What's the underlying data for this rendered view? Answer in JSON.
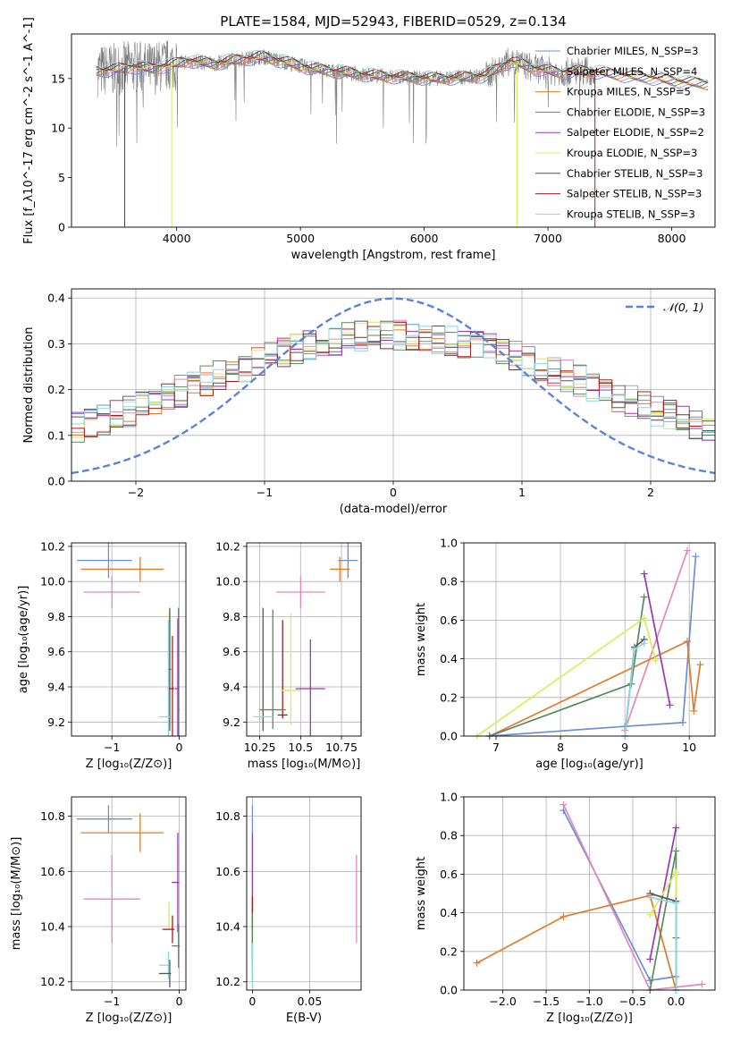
{
  "figure_title": "PLATE=1584, MJD=52943, FIBERID=0529, z=0.134",
  "colors": {
    "Chabrier MILES": "#6b8fd6",
    "Salpeter MILES": "#e487b8",
    "Kroupa MILES": "#e07b2c",
    "Chabrier ELODIE": "#5a8a5e",
    "Salpeter ELODIE": "#9a36b8",
    "Kroupa ELODIE": "#d8ee5a",
    "Chabrier STELIB": "#555555",
    "Salpeter STELIB": "#aa1a1a",
    "Kroupa STELIB": "#8ad8e0",
    "data": "#808080"
  },
  "chart_data": [
    {
      "id": "spectrum",
      "type": "line",
      "xlabel": "wavelength [Angstrom, rest frame]",
      "ylabel": "Flux [f_λ10^-17 erg cm^-2 s^-1 A^-1]",
      "xlim": [
        3150,
        8350
      ],
      "ylim": [
        0,
        19.5
      ],
      "xticks": [
        4000,
        5000,
        6000,
        7000,
        8000
      ],
      "yticks": [
        0,
        5,
        10,
        15
      ],
      "grid": false,
      "legend_position": "right",
      "legend": [
        "Chabrier MILES, N_SSP=3",
        "Salpeter MILES, N_SSP=4",
        "Kroupa MILES, N_SSP=5",
        "Chabrier ELODIE, N_SSP=3",
        "Salpeter ELODIE, N_SSP=2",
        "Kroupa ELODIE, N_SSP=3",
        "Chabrier STELIB, N_SSP=3",
        "Salpeter STELIB, N_SSP=3",
        "Kroupa STELIB, N_SSP=3"
      ],
      "data_range": [
        3360,
        7380
      ],
      "model_continuum": [
        [
          3350,
          15.8
        ],
        [
          3500,
          15.9
        ],
        [
          3650,
          16.2
        ],
        [
          3800,
          16.0
        ],
        [
          3950,
          16.4
        ],
        [
          4100,
          16.8
        ],
        [
          4300,
          16.5
        ],
        [
          4500,
          16.9
        ],
        [
          4700,
          17.2
        ],
        [
          4900,
          16.6
        ],
        [
          5100,
          16.0
        ],
        [
          5300,
          15.7
        ],
        [
          5500,
          15.4
        ],
        [
          5700,
          15.2
        ],
        [
          5900,
          15.1
        ],
        [
          6100,
          15.0
        ],
        [
          6300,
          15.1
        ],
        [
          6500,
          15.3
        ],
        [
          6700,
          16.8
        ],
        [
          6900,
          16.0
        ],
        [
          7100,
          15.6
        ],
        [
          7300,
          15.8
        ],
        [
          7500,
          15.5
        ],
        [
          7700,
          15.2
        ],
        [
          7900,
          15.0
        ],
        [
          8100,
          14.6
        ],
        [
          8300,
          14.5
        ]
      ],
      "model_edges": [
        {
          "series": "Salpeter STELIB",
          "x": 3580
        },
        {
          "series": "Kroupa ELODIE",
          "x": 3960
        },
        {
          "series": "Kroupa ELODIE",
          "x": 6750
        },
        {
          "series": "Salpeter STELIB",
          "x": 7380
        }
      ]
    },
    {
      "id": "residuals",
      "type": "histogram",
      "xlabel": "(data-model)/error",
      "ylabel": "Normed distribution",
      "xlim": [
        -2.5,
        2.5
      ],
      "ylim": [
        0,
        0.42
      ],
      "xticks": [
        -2,
        -1,
        0,
        1,
        2
      ],
      "yticks": [
        0.0,
        0.1,
        0.2,
        0.3,
        0.4
      ],
      "grid": true,
      "legend_position": "top-right",
      "legend": [
        "𝒩(0, 1)"
      ],
      "bins": 50,
      "gaussian": {
        "mu": 0,
        "sigma": 1
      }
    },
    {
      "id": "age-vs-Z",
      "type": "errorbar",
      "xlabel": "Z [log10(Z/Z⊙)]",
      "ylabel": "age [log10(age/yr)]",
      "xlim": [
        -1.6,
        0.1
      ],
      "ylim": [
        9.12,
        10.22
      ],
      "xticks": [
        -1,
        0
      ],
      "yticks": [
        9.2,
        9.4,
        9.6,
        9.8,
        10.0,
        10.2
      ],
      "grid": true,
      "points": [
        {
          "series": "Chabrier MILES",
          "x": -1.05,
          "xerr": [
            0.47,
            0.35
          ],
          "y": 10.12,
          "yerr": 0.1
        },
        {
          "series": "Kroupa MILES",
          "x": -0.58,
          "xerr": [
            0.88,
            0.35
          ],
          "y": 10.07,
          "yerr": 0.07
        },
        {
          "series": "Salpeter MILES",
          "x": -1.0,
          "xerr": [
            0.42,
            0.42
          ],
          "y": 9.94,
          "yerr": 0.09
        },
        {
          "series": "Chabrier ELODIE",
          "x": -0.01,
          "xerr": [
            0.0,
            0.02
          ],
          "y": 9.27,
          "yerr": 0.58
        },
        {
          "series": "Salpeter ELODIE",
          "x": -0.02,
          "xerr": [
            0.04,
            0.02
          ],
          "y": 9.39,
          "yerr": 0.4
        },
        {
          "series": "Kroupa ELODIE",
          "x": -0.15,
          "xerr": [
            0.02,
            0.02
          ],
          "y": 9.5,
          "yerr": 0.32
        },
        {
          "series": "Chabrier STELIB",
          "x": -0.14,
          "xerr": [
            0.02,
            0.02
          ],
          "y": 9.5,
          "yerr": 0.35
        },
        {
          "series": "Salpeter STELIB",
          "x": -0.1,
          "xerr": [
            0.07,
            0.03
          ],
          "y": 9.39,
          "yerr": 0.3
        },
        {
          "series": "Kroupa STELIB",
          "x": -0.16,
          "xerr": [
            0.14,
            0.02
          ],
          "y": 9.23,
          "yerr": 0.55
        }
      ]
    },
    {
      "id": "age-vs-mass",
      "type": "errorbar",
      "xlabel": "mass [log10(M/M⊙)]",
      "ylabel": "",
      "xlim": [
        10.17,
        10.87
      ],
      "ylim": [
        9.12,
        10.22
      ],
      "xticks": [
        10.25,
        10.5,
        10.75
      ],
      "yticks": [
        9.2,
        9.4,
        9.6,
        9.8,
        10.0,
        10.2
      ],
      "grid": true,
      "points": [
        {
          "series": "Chabrier MILES",
          "x": 10.79,
          "xerr": [
            0.06,
            0.06
          ],
          "y": 10.12,
          "yerr": 0.1
        },
        {
          "series": "Kroupa MILES",
          "x": 10.74,
          "xerr": [
            0.06,
            0.06
          ],
          "y": 10.07,
          "yerr": 0.07
        },
        {
          "series": "Salpeter MILES",
          "x": 10.5,
          "xerr": [
            0.15,
            0.15
          ],
          "y": 9.94,
          "yerr": 0.09
        },
        {
          "series": "Chabrier STELIB",
          "x": 10.27,
          "xerr": [
            0.0,
            0.0
          ],
          "y": 9.5,
          "yerr": 0.35
        },
        {
          "series": "Chabrier ELODIE",
          "x": 10.33,
          "xerr": [
            0.0,
            0.0
          ],
          "y": 9.5,
          "yerr": 0.34
        },
        {
          "series": "Salpeter STELIB",
          "x": 10.39,
          "xerr": [
            0.0,
            0.0
          ],
          "y": 9.5,
          "yerr": 0.28
        },
        {
          "series": "Kroupa ELODIE",
          "x": 10.44,
          "xerr": [
            0.0,
            0.0
          ],
          "y": 9.5,
          "yerr": 0.32
        },
        {
          "series": "Salpeter ELODIE",
          "x": 10.56,
          "xerr": [
            0.09,
            0.09
          ],
          "y": 9.39,
          "yerr": 0.28
        },
        {
          "series": "Chabrier ELODIE",
          "x": 10.33,
          "xerr": [
            0.08,
            0.08
          ],
          "y": 9.27,
          "yerr": 0.0
        },
        {
          "series": "Salpeter STELIB",
          "x": 10.39,
          "xerr": [
            0.03,
            0.03
          ],
          "y": 9.24,
          "yerr": 0.0
        },
        {
          "series": "Kroupa ELODIE",
          "x": 10.44,
          "xerr": [
            0.06,
            0.06
          ],
          "y": 9.38,
          "yerr": 0.0
        },
        {
          "series": "Kroupa STELIB",
          "x": 10.27,
          "xerr": [
            0.06,
            0.06
          ],
          "y": 9.23,
          "yerr": 0.0
        }
      ]
    },
    {
      "id": "weight-vs-age",
      "type": "line",
      "xlabel": "age [log10(age/yr)]",
      "ylabel": "mass weight",
      "xlim": [
        6.5,
        10.4
      ],
      "ylim": [
        0,
        1
      ],
      "xticks": [
        7,
        8,
        9,
        10
      ],
      "yticks": [
        0.0,
        0.2,
        0.4,
        0.6,
        0.8,
        1.0
      ],
      "grid": true,
      "series": [
        {
          "name": "Chabrier MILES",
          "points": [
            [
              6.9,
              0.0
            ],
            [
              9.0,
              0.05
            ],
            [
              9.9,
              0.07
            ],
            [
              10.1,
              0.93
            ]
          ]
        },
        {
          "name": "Salpeter MILES",
          "points": [
            [
              9.0,
              0.03
            ],
            [
              9.97,
              0.96
            ]
          ]
        },
        {
          "name": "Kroupa MILES",
          "points": [
            [
              6.9,
              0.0
            ],
            [
              9.97,
              0.49
            ],
            [
              10.07,
              0.13
            ],
            [
              10.17,
              0.37
            ]
          ]
        },
        {
          "name": "Chabrier ELODIE",
          "points": [
            [
              6.9,
              0.0
            ],
            [
              9.1,
              0.27
            ],
            [
              9.3,
              0.72
            ]
          ]
        },
        {
          "name": "Salpeter ELODIE",
          "points": [
            [
              9.3,
              0.84
            ],
            [
              9.7,
              0.16
            ]
          ]
        },
        {
          "name": "Kroupa ELODIE",
          "points": [
            [
              6.7,
              0.0
            ],
            [
              9.3,
              0.61
            ],
            [
              9.48,
              0.39
            ]
          ]
        },
        {
          "name": "Chabrier STELIB",
          "points": [
            [
              9.0,
              0.0
            ],
            [
              9.15,
              0.46
            ],
            [
              9.3,
              0.5
            ]
          ]
        },
        {
          "name": "Kroupa STELIB",
          "points": [
            [
              9.0,
              0.0
            ],
            [
              9.15,
              0.45
            ],
            [
              9.3,
              0.48
            ]
          ]
        }
      ]
    },
    {
      "id": "mass-vs-Z",
      "type": "errorbar",
      "xlabel": "Z [log10(Z/Z⊙)]",
      "ylabel": "mass [log10(M/M⊙)]",
      "xlim": [
        -1.6,
        0.1
      ],
      "ylim": [
        10.17,
        10.87
      ],
      "xticks": [
        -1,
        0
      ],
      "yticks": [
        10.2,
        10.4,
        10.6,
        10.8
      ],
      "grid": true,
      "points": [
        {
          "series": "Chabrier MILES",
          "x": -1.05,
          "xerr": [
            0.47,
            0.35
          ],
          "y": 10.79,
          "yerr": 0.05
        },
        {
          "series": "Kroupa MILES",
          "x": -0.58,
          "xerr": [
            0.88,
            0.35
          ],
          "y": 10.74,
          "yerr": 0.07
        },
        {
          "series": "Salpeter MILES",
          "x": -1.0,
          "xerr": [
            0.42,
            0.42
          ],
          "y": 10.5,
          "yerr": 0.16
        },
        {
          "series": "Salpeter ELODIE",
          "x": -0.02,
          "xerr": [
            0.09,
            0.02
          ],
          "y": 10.56,
          "yerr": 0.18
        },
        {
          "series": "Kroupa ELODIE",
          "x": -0.15,
          "xerr": [
            0.02,
            0.02
          ],
          "y": 10.44,
          "yerr": 0.05
        },
        {
          "series": "Salpeter STELIB",
          "x": -0.1,
          "xerr": [
            0.15,
            0.03
          ],
          "y": 10.39,
          "yerr": 0.05
        },
        {
          "series": "Chabrier ELODIE",
          "x": -0.01,
          "xerr": [
            0.1,
            0.02
          ],
          "y": 10.33,
          "yerr": 0.08
        },
        {
          "series": "Kroupa STELIB",
          "x": -0.16,
          "xerr": [
            0.14,
            0.02
          ],
          "y": 10.26,
          "yerr": 0.05
        },
        {
          "series": "Chabrier STELIB",
          "x": -0.14,
          "xerr": [
            0.16,
            0.02
          ],
          "y": 10.23,
          "yerr": 0.05
        }
      ]
    },
    {
      "id": "mass-vs-EBV",
      "type": "errorbar",
      "xlabel": "E(B-V)",
      "ylabel": "",
      "xlim": [
        -0.005,
        0.095
      ],
      "ylim": [
        10.17,
        10.87
      ],
      "xticks": [
        0.0,
        0.05
      ],
      "yticks": [
        10.2,
        10.4,
        10.6,
        10.8
      ],
      "grid": true,
      "points": [
        {
          "series": "Chabrier MILES",
          "x": 0.0,
          "xerr": [
            0,
            0
          ],
          "y": 10.79,
          "yerr": 0.05
        },
        {
          "series": "Salpeter ELODIE",
          "x": 0.0,
          "xerr": [
            0,
            0
          ],
          "y": 10.56,
          "yerr": 0.18
        },
        {
          "series": "Salpeter STELIB",
          "x": 0.0,
          "xerr": [
            0,
            0
          ],
          "y": 10.39,
          "yerr": 0.12
        },
        {
          "series": "Chabrier ELODIE",
          "x": 0.0,
          "xerr": [
            0,
            0
          ],
          "y": 10.33,
          "yerr": 0.12
        },
        {
          "series": "Kroupa STELIB",
          "x": 0.0,
          "xerr": [
            0,
            0
          ],
          "y": 10.26,
          "yerr": 0.08
        },
        {
          "series": "Salpeter MILES",
          "x": 0.091,
          "xerr": [
            0,
            0
          ],
          "y": 10.5,
          "yerr": 0.16
        }
      ]
    },
    {
      "id": "weight-vs-Z",
      "type": "line",
      "xlabel": "Z [log10(Z/Z⊙)]",
      "ylabel": "mass weight",
      "xlim": [
        -2.45,
        0.45
      ],
      "ylim": [
        0,
        1
      ],
      "xticks": [
        -2.0,
        -1.5,
        -1.0,
        -0.5,
        0.0
      ],
      "yticks": [
        0.0,
        0.2,
        0.4,
        0.6,
        0.8,
        1.0
      ],
      "grid": true,
      "series": [
        {
          "name": "Chabrier MILES",
          "points": [
            [
              -1.3,
              0.93
            ],
            [
              -0.3,
              0.05
            ],
            [
              0.0,
              0.07
            ]
          ]
        },
        {
          "name": "Salpeter MILES",
          "points": [
            [
              -1.3,
              0.96
            ],
            [
              -0.3,
              0.0
            ],
            [
              0.3,
              0.03
            ]
          ]
        },
        {
          "name": "Kroupa MILES",
          "points": [
            [
              -2.3,
              0.14
            ],
            [
              -1.3,
              0.38
            ],
            [
              -0.3,
              0.49
            ],
            [
              0.0,
              0.0
            ]
          ]
        },
        {
          "name": "Chabrier ELODIE",
          "points": [
            [
              -0.3,
              0.0
            ],
            [
              0.0,
              0.72
            ],
            [
              0.0,
              0.27
            ]
          ]
        },
        {
          "name": "Salpeter ELODIE",
          "points": [
            [
              -0.3,
              0.16
            ],
            [
              0.0,
              0.84
            ]
          ]
        },
        {
          "name": "Kroupa ELODIE",
          "points": [
            [
              -0.3,
              0.39
            ],
            [
              0.0,
              0.61
            ],
            [
              0.0,
              0.0
            ]
          ]
        },
        {
          "name": "Chabrier STELIB",
          "points": [
            [
              -0.3,
              0.5
            ],
            [
              0.0,
              0.46
            ],
            [
              0.0,
              0.0
            ]
          ]
        },
        {
          "name": "Kroupa STELIB",
          "points": [
            [
              -0.3,
              0.48
            ],
            [
              0.0,
              0.45
            ],
            [
              0.0,
              0.0
            ]
          ]
        }
      ]
    }
  ]
}
